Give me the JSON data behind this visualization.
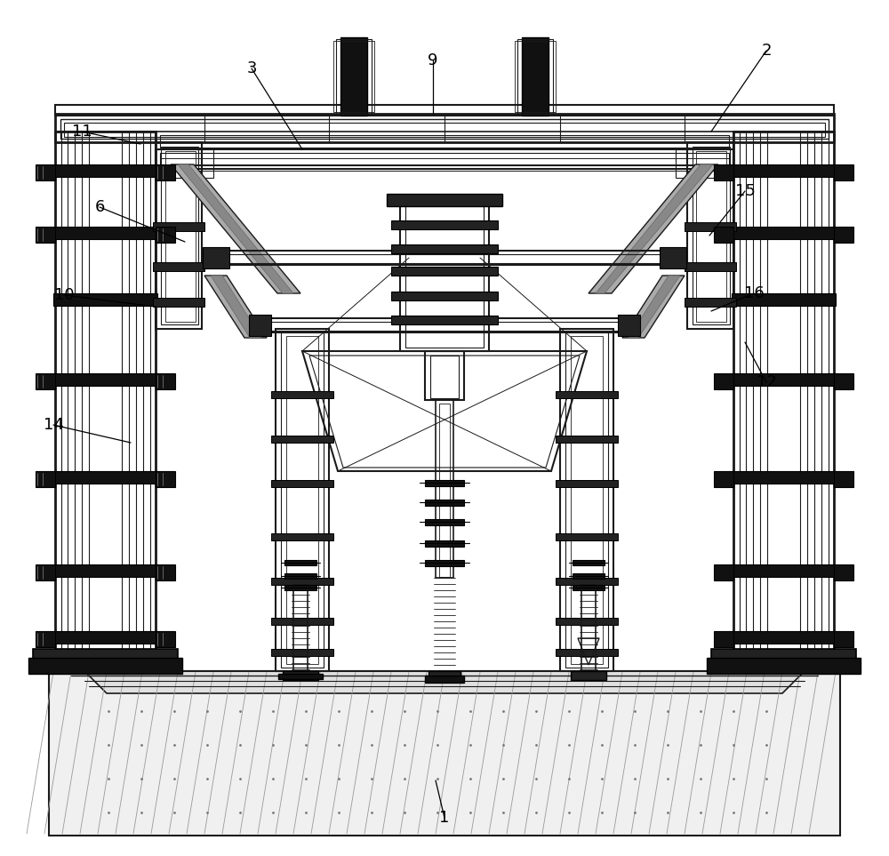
{
  "bg_color": "#ffffff",
  "lc": "#1a1a1a",
  "dc": "#000000",
  "fig_width": 10.0,
  "fig_height": 9.63,
  "dpi": 100,
  "labels": {
    "1": [
      500,
      920,
      490,
      878
    ],
    "2": [
      862,
      57,
      800,
      148
    ],
    "3": [
      283,
      77,
      340,
      168
    ],
    "6": [
      112,
      233,
      208,
      272
    ],
    "9": [
      487,
      68,
      487,
      128
    ],
    "10": [
      72,
      332,
      175,
      345
    ],
    "11": [
      92,
      148,
      158,
      162
    ],
    "12": [
      862,
      430,
      838,
      385
    ],
    "14": [
      60,
      478,
      147,
      498
    ],
    "15": [
      838,
      215,
      798,
      265
    ],
    "16": [
      848,
      330,
      800,
      350
    ]
  }
}
